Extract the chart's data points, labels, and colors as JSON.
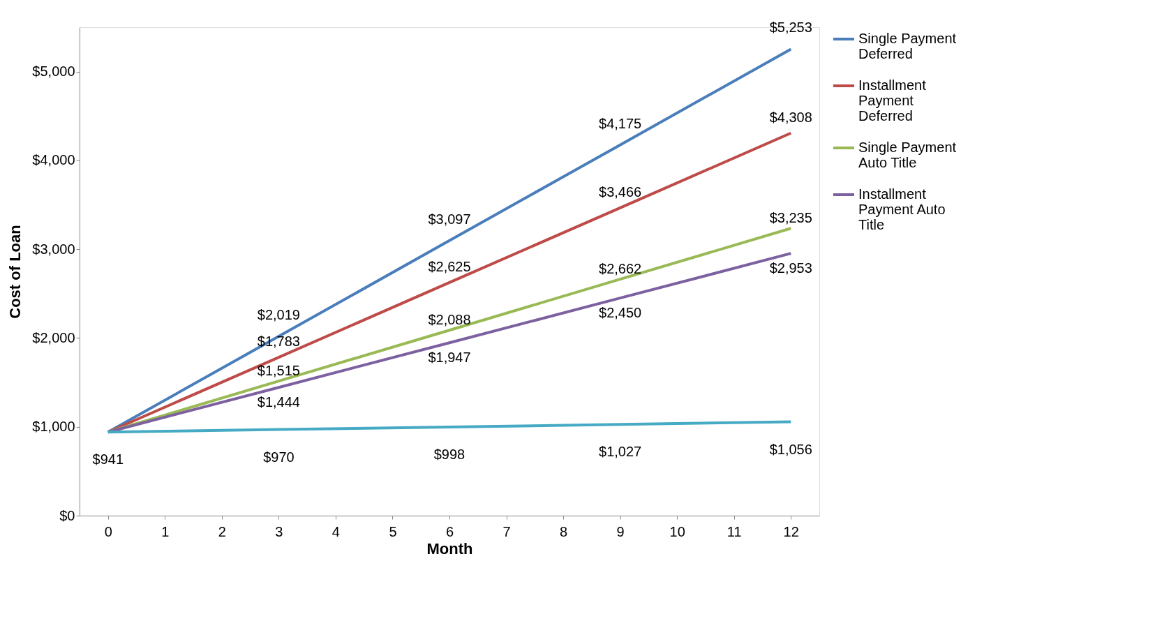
{
  "chart_data": {
    "type": "line",
    "xlabel": "Month",
    "ylabel": "Cost of Loan",
    "x": [
      0,
      3,
      6,
      9,
      12
    ],
    "series": [
      {
        "name": "Single Payment Deferred",
        "color": "#4a7ebb",
        "values": [
          941,
          2019,
          3097,
          4175,
          5253
        ],
        "value_labels": [
          null,
          "$2,019",
          "$3,097",
          "$4,175",
          "$5,253"
        ]
      },
      {
        "name": "Installment Payment Deferred",
        "color": "#be4b48",
        "values": [
          941,
          1783,
          2625,
          3466,
          4308
        ],
        "value_labels": [
          null,
          "$1,783",
          "$2,625",
          "$3,466",
          "$4,308"
        ]
      },
      {
        "name": "Single Payment Auto Title",
        "color": "#98b954",
        "values": [
          941,
          1515,
          2088,
          2662,
          3235
        ],
        "value_labels": [
          null,
          "$1,515",
          "$2,088",
          "$2,662",
          "$3,235"
        ]
      },
      {
        "name": "Installment Payment Auto Title",
        "color": "#7d60a0",
        "values": [
          941,
          1444,
          1947,
          2450,
          2953
        ],
        "value_labels": [
          null,
          "$1,444",
          "$1,947",
          "$2,450",
          "$2,953"
        ]
      },
      {
        "color": "#46aac5",
        "values": [
          941,
          970,
          998,
          1027,
          1056
        ],
        "value_labels": [
          "$941",
          "$970",
          "$998",
          "$1,027",
          "$1,056"
        ]
      }
    ],
    "xlim": [
      -0.5,
      12.5
    ],
    "xticks": [
      0,
      1,
      2,
      3,
      4,
      5,
      6,
      7,
      8,
      9,
      10,
      11,
      12
    ],
    "ylim": [
      0,
      5500
    ],
    "yticks": [
      {
        "value": 0,
        "label": "$0"
      },
      {
        "value": 1000,
        "label": "$1,000"
      },
      {
        "value": 2000,
        "label": "$2,000"
      },
      {
        "value": 3000,
        "label": "$3,000"
      },
      {
        "value": 4000,
        "label": "$4,000"
      },
      {
        "value": 5000,
        "label": "$5,000"
      }
    ],
    "grid": false,
    "legend": "right",
    "marker": "none",
    "line_style": "solid"
  }
}
